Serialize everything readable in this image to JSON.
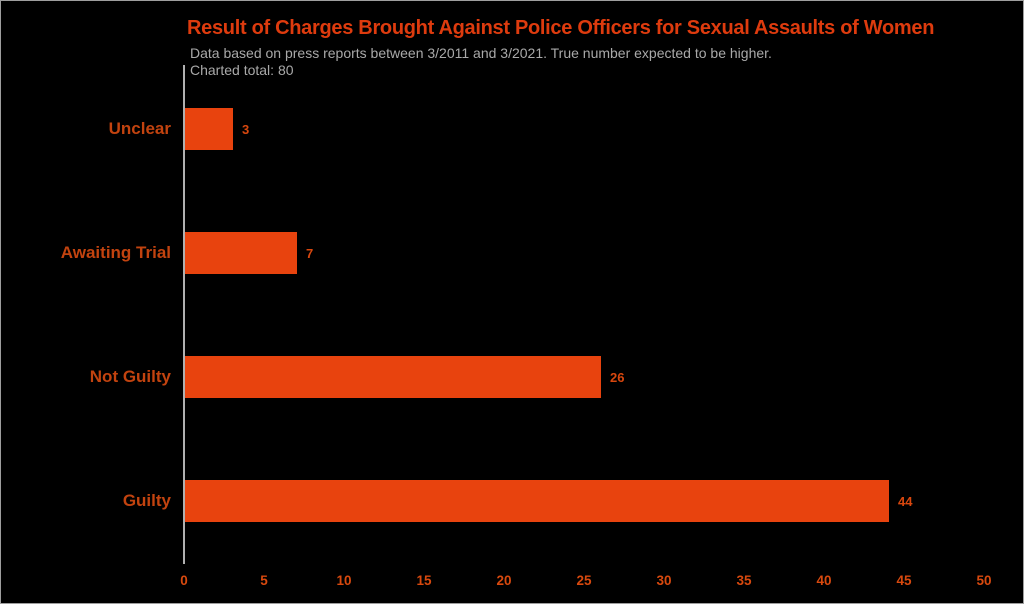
{
  "page": {
    "background": "#000000",
    "border_color": "#9e9e9e"
  },
  "chart_data": {
    "type": "bar",
    "orientation": "horizontal",
    "title": "Result of Charges Brought Against Police Officers for Sexual Assaults of Women",
    "subtitle": "Data based on press reports between 3/2011 and 3/2021. True number expected to be higher.",
    "note": "Charted total: 80",
    "categories_top_to_bottom": [
      "Unclear",
      "Awaiting Trial",
      "Not Guilty",
      "Guilty"
    ],
    "categories": [
      "Unclear",
      "Awaiting Trial",
      "Not Guilty",
      "Guilty"
    ],
    "values": [
      3,
      7,
      26,
      44
    ],
    "charted_total": 80,
    "xlabel": "",
    "ylabel": "",
    "xlim": [
      0,
      50
    ],
    "xticks": [
      0,
      5,
      10,
      15,
      20,
      25,
      30,
      35,
      40,
      45,
      50
    ],
    "grid": false,
    "legend": null,
    "value_labels_shown": true,
    "colors": {
      "bar": "#e8430e",
      "title": "#de3b0e",
      "category_label": "#c2430f",
      "value_label": "#d8470e",
      "tick_label": "#d8490e",
      "subtitle": "#a9a9a9",
      "axis_line": "#b0b0b0"
    }
  }
}
